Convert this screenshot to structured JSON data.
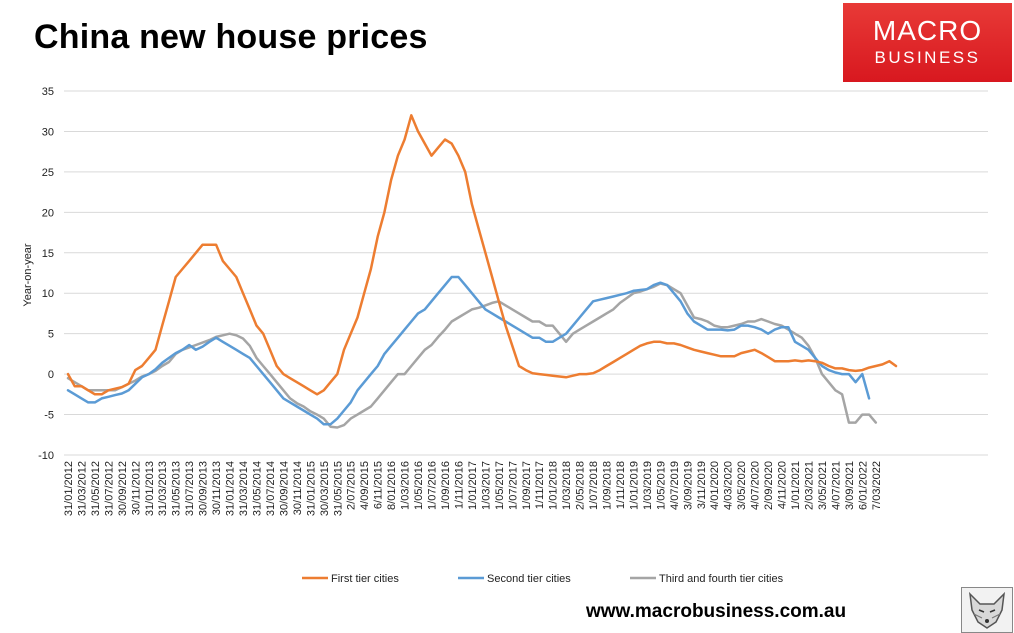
{
  "header": {
    "title": "China new house prices"
  },
  "logo": {
    "line1": "MACRO",
    "line2": "BUSINESS"
  },
  "footer": {
    "url": "www.macrobusiness.com.au"
  },
  "colors": {
    "first": "#ed7d31",
    "second": "#5b9bd5",
    "third": "#a5a5a5",
    "logo": "#e3262b"
  },
  "chart_data": {
    "type": "line",
    "title": "China new house prices",
    "ylabel": "Year-on-year",
    "xlabel": "",
    "ylim": [
      -10,
      35
    ],
    "yticks": [
      -10,
      -5,
      0,
      5,
      10,
      15,
      20,
      25,
      30,
      35
    ],
    "grid": true,
    "legend_position": "bottom",
    "x_tick_labels": [
      "31/01/2012",
      "31/03/2012",
      "31/05/2012",
      "31/07/2012",
      "30/09/2012",
      "30/11/2012",
      "31/01/2013",
      "31/03/2013",
      "31/05/2013",
      "31/07/2013",
      "30/09/2013",
      "30/11/2013",
      "31/01/2014",
      "31/03/2014",
      "31/05/2014",
      "31/07/2014",
      "30/09/2014",
      "30/11/2014",
      "31/01/2015",
      "30/03/2015",
      "31/05/2015",
      "2/07/2015",
      "4/09/2015",
      "6/11/2015",
      "8/01/2016",
      "1/03/2016",
      "1/05/2016",
      "1/07/2016",
      "1/09/2016",
      "1/11/2016",
      "1/01/2017",
      "1/03/2017",
      "1/05/2017",
      "1/07/2017",
      "1/09/2017",
      "1/11/2017",
      "1/01/2018",
      "1/03/2018",
      "2/05/2018",
      "1/07/2018",
      "1/09/2018",
      "1/11/2018",
      "1/01/2019",
      "1/03/2019",
      "1/05/2019",
      "4/07/2019",
      "3/09/2019",
      "3/11/2019",
      "4/01/2020",
      "4/03/2020",
      "3/05/2020",
      "4/07/2020",
      "2/09/2020",
      "4/11/2020",
      "1/01/2021",
      "2/03/2021",
      "3/05/2021",
      "4/07/2021",
      "3/09/2021",
      "6/01/2022",
      "7/03/2022"
    ],
    "x_months": "monthly, Jan 2012 to Jul 2022",
    "series": [
      {
        "name": "First tier cities",
        "values": [
          0,
          -1.5,
          -1.5,
          -2,
          -2.5,
          -2.5,
          -2,
          -1.8,
          -1.6,
          -1.2,
          0.5,
          1,
          2,
          3,
          6,
          9,
          12,
          13,
          14,
          15,
          16,
          16,
          16,
          14,
          13,
          12,
          10,
          8,
          6,
          5,
          3,
          1,
          0,
          -0.5,
          -1,
          -1.5,
          -2,
          -2.5,
          -2,
          -1,
          0,
          3,
          5,
          7,
          10,
          13,
          17,
          20,
          24,
          27,
          29,
          32,
          30,
          28.5,
          27,
          28,
          29,
          28.5,
          27,
          25,
          21,
          18,
          15,
          12,
          9,
          6,
          3.5,
          1,
          0.5,
          0.1,
          0,
          -0.1,
          -0.2,
          -0.3,
          -0.4,
          -0.2,
          0,
          0,
          0.1,
          0.5,
          1,
          1.5,
          2,
          2.5,
          3,
          3.5,
          3.8,
          4,
          4,
          3.8,
          3.8,
          3.6,
          3.3,
          3,
          2.8,
          2.6,
          2.4,
          2.2,
          2.2,
          2.2,
          2.6,
          2.8,
          3,
          2.6,
          2.1,
          1.6,
          1.6,
          1.6,
          1.7,
          1.6,
          1.7,
          1.6,
          1.4,
          1,
          0.7,
          0.7,
          0.5,
          0.4,
          0.5,
          0.8,
          1,
          1.2,
          1.6,
          1
        ]
      },
      {
        "name": "Second tier cities",
        "values": [
          -2,
          -2.5,
          -3,
          -3.5,
          -3.5,
          -3,
          -2.8,
          -2.6,
          -2.4,
          -2,
          -1.2,
          -0.4,
          0,
          0.6,
          1.4,
          2,
          2.6,
          3,
          3.6,
          3,
          3.4,
          4,
          4.5,
          4,
          3.5,
          3,
          2.5,
          2,
          1,
          0,
          -1,
          -2,
          -3,
          -3.5,
          -4,
          -4.5,
          -5,
          -5.5,
          -6.2,
          -6.2,
          -5.5,
          -4.5,
          -3.5,
          -2,
          -1,
          0,
          1,
          2.5,
          3.5,
          4.5,
          5.5,
          6.5,
          7.5,
          8,
          9,
          10,
          11,
          12,
          12,
          11,
          10,
          9,
          8,
          7.5,
          7,
          6.5,
          6,
          5.5,
          5,
          4.5,
          4.5,
          4,
          4,
          4.5,
          5,
          6,
          7,
          8,
          9,
          9.2,
          9.4,
          9.6,
          9.8,
          10,
          10.3,
          10.4,
          10.5,
          11,
          11.3,
          11,
          10,
          9,
          7.5,
          6.5,
          6,
          5.5,
          5.5,
          5.5,
          5.4,
          5.5,
          6,
          6,
          5.8,
          5.5,
          5,
          5.5,
          5.8,
          5.8,
          4,
          3.5,
          3,
          2,
          1,
          0.5,
          0.2,
          0,
          0,
          -1,
          0,
          -3
        ]
      },
      {
        "name": "Third and fourth tier cities",
        "values": [
          -0.5,
          -1,
          -1.5,
          -2,
          -2,
          -2,
          -2,
          -2,
          -1.6,
          -1.2,
          -0.8,
          -0.3,
          0,
          0.4,
          1,
          1.5,
          2.5,
          3,
          3.3,
          3.6,
          3.9,
          4.2,
          4.6,
          4.8,
          5,
          4.8,
          4.4,
          3.5,
          2,
          1,
          0,
          -1,
          -2,
          -3,
          -3.6,
          -4,
          -4.6,
          -5,
          -5.5,
          -6.5,
          -6.6,
          -6.3,
          -5.5,
          -5,
          -4.5,
          -4,
          -3,
          -2,
          -1,
          0,
          0,
          1,
          2,
          3,
          3.6,
          4.6,
          5.5,
          6.5,
          7,
          7.5,
          8,
          8.2,
          8.5,
          8.8,
          9,
          8.5,
          8,
          7.5,
          7,
          6.5,
          6.5,
          6,
          6,
          5,
          4,
          5,
          5.5,
          6,
          6.5,
          7,
          7.5,
          8,
          8.8,
          9.4,
          10,
          10.2,
          10.5,
          10.8,
          11.2,
          11,
          10.5,
          10,
          8.5,
          7,
          6.8,
          6.5,
          6,
          5.8,
          5.8,
          6,
          6.2,
          6.5,
          6.5,
          6.8,
          6.5,
          6.2,
          6,
          5.5,
          5,
          4.5,
          3.5,
          2,
          0,
          -1,
          -2,
          -2.5,
          -6,
          -6,
          -5,
          -5,
          -6
        ]
      }
    ]
  }
}
